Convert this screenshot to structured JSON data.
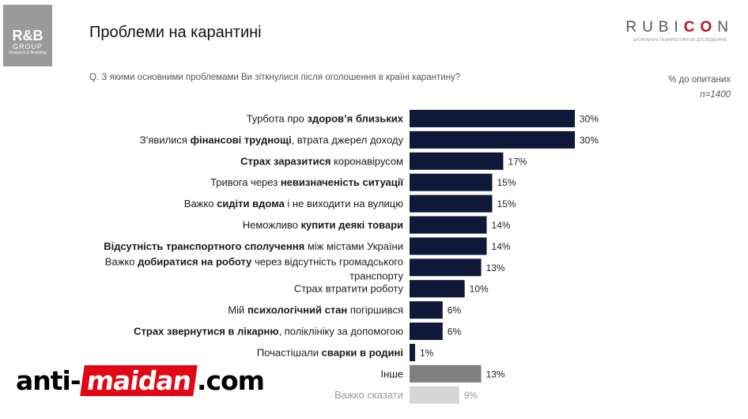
{
  "logo_left": {
    "line1": "R&B",
    "line2": "GROUP",
    "line3": "Research & Branding"
  },
  "title": "Проблеми на карантині",
  "rubicon": {
    "prefix": "RUBI",
    "highlight": "CO",
    "suffix": "N",
    "tagline": "ЕКОНОМІЧНІ ТА МАРКЕТИНГОВІ ДОСЛІДЖЕННЯ"
  },
  "question": "Q. З якими основними проблемами Ви зіткнулися після оголошення в країні карантину?",
  "units_label": "% до опитаних",
  "sample_label": "n=1400",
  "watermark": {
    "part1": "anti-",
    "part2": "maidan",
    "part3": ".com"
  },
  "colors": {
    "main": "#0f1838",
    "other": "#808080",
    "hard": "#d6d6d6",
    "hard_text": "#9a9a9a"
  },
  "chart_data": {
    "type": "bar",
    "orientation": "horizontal",
    "xlim": [
      0,
      30
    ],
    "categories": [
      {
        "lines": [
          [
            {
              "t": "Турбота про ",
              "b": false
            },
            {
              "t": "здоров’я близьких",
              "b": true
            }
          ]
        ],
        "value": 30,
        "label": "30%",
        "style": "main"
      },
      {
        "lines": [
          [
            {
              "t": "З’явилися ",
              "b": false
            },
            {
              "t": "фінансові труднощі",
              "b": true
            },
            {
              "t": ", втрата джерел доходу",
              "b": false
            }
          ]
        ],
        "value": 30,
        "label": "30%",
        "style": "main"
      },
      {
        "lines": [
          [
            {
              "t": "Страх заразитися",
              "b": true
            },
            {
              "t": " коронавірусом",
              "b": false
            }
          ]
        ],
        "value": 17,
        "label": "17%",
        "style": "main"
      },
      {
        "lines": [
          [
            {
              "t": "Тривога через ",
              "b": false
            },
            {
              "t": "невизначеність ситуації",
              "b": true
            }
          ]
        ],
        "value": 15,
        "label": "15%",
        "style": "main"
      },
      {
        "lines": [
          [
            {
              "t": "Важко ",
              "b": false
            },
            {
              "t": "сидіти вдома",
              "b": true
            },
            {
              "t": " і не виходити на вулицю",
              "b": false
            }
          ]
        ],
        "value": 15,
        "label": "15%",
        "style": "main"
      },
      {
        "lines": [
          [
            {
              "t": "Неможливо ",
              "b": false
            },
            {
              "t": "купити деякі товари",
              "b": true
            }
          ]
        ],
        "value": 14,
        "label": "14%",
        "style": "main"
      },
      {
        "lines": [
          [
            {
              "t": "Відсутність транспортного сполучення",
              "b": true
            },
            {
              "t": " між містами України",
              "b": false
            }
          ]
        ],
        "value": 14,
        "label": "14%",
        "style": "main"
      },
      {
        "lines": [
          [
            {
              "t": "Важко ",
              "b": false
            },
            {
              "t": "добиратися на роботу",
              "b": true
            },
            {
              "t": " через відсутність громадського",
              "b": false
            }
          ],
          [
            {
              "t": "транспорту",
              "b": false
            }
          ]
        ],
        "value": 13,
        "label": "13%",
        "style": "main"
      },
      {
        "lines": [
          [
            {
              "t": "Страх втратити роботу",
              "b": false
            }
          ]
        ],
        "value": 10,
        "label": "10%",
        "style": "main"
      },
      {
        "lines": [
          [
            {
              "t": "Мій ",
              "b": false
            },
            {
              "t": "психологічний стан",
              "b": true
            },
            {
              "t": " погіршився",
              "b": false
            }
          ]
        ],
        "value": 6,
        "label": "6%",
        "style": "main"
      },
      {
        "lines": [
          [
            {
              "t": "Страх звернутися в лікарню",
              "b": true
            },
            {
              "t": ", поліклініку за допомогою",
              "b": false
            }
          ]
        ],
        "value": 6,
        "label": "6%",
        "style": "main"
      },
      {
        "lines": [
          [
            {
              "t": "Почастішали ",
              "b": false
            },
            {
              "t": "сварки в родині",
              "b": true
            }
          ]
        ],
        "value": 1,
        "label": "1%",
        "style": "main"
      },
      {
        "lines": [
          [
            {
              "t": "Інше",
              "b": false
            }
          ]
        ],
        "value": 13,
        "label": "13%",
        "style": "other"
      },
      {
        "lines": [
          [
            {
              "t": "Важко сказати",
              "b": false
            }
          ]
        ],
        "value": 9,
        "label": "9%",
        "style": "hard"
      }
    ]
  }
}
